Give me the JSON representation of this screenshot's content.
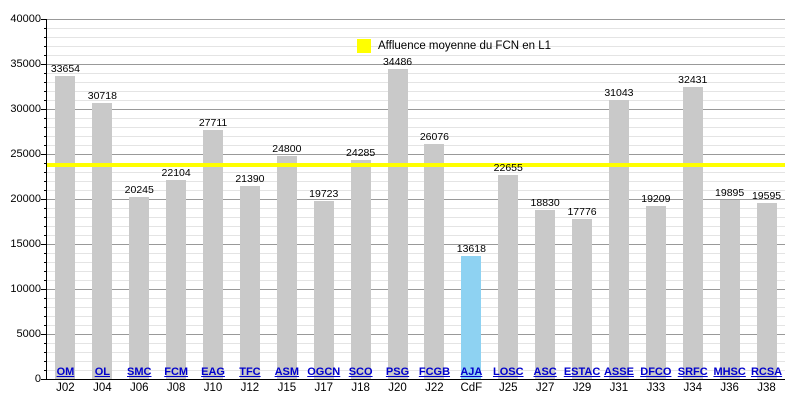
{
  "chart_data": {
    "type": "bar",
    "title": "",
    "xlabel": "",
    "ylabel": "",
    "ylim": [
      0,
      40000
    ],
    "ytick_major_step": 5000,
    "ytick_minor_step": 1000,
    "grid": true,
    "legend_position": "top-center",
    "bars": [
      {
        "team": "OM",
        "matchday": "J02",
        "value": 33654,
        "highlight": false
      },
      {
        "team": "OL",
        "matchday": "J04",
        "value": 30718,
        "highlight": false
      },
      {
        "team": "SMC",
        "matchday": "J06",
        "value": 20245,
        "highlight": false
      },
      {
        "team": "FCM",
        "matchday": "J08",
        "value": 22104,
        "highlight": false
      },
      {
        "team": "EAG",
        "matchday": "J10",
        "value": 27711,
        "highlight": false
      },
      {
        "team": "TFC",
        "matchday": "J12",
        "value": 21390,
        "highlight": false
      },
      {
        "team": "ASM",
        "matchday": "J15",
        "value": 24800,
        "highlight": false
      },
      {
        "team": "OGCN",
        "matchday": "J17",
        "value": 19723,
        "highlight": false
      },
      {
        "team": "SCO",
        "matchday": "J18",
        "value": 24285,
        "highlight": false
      },
      {
        "team": "PSG",
        "matchday": "J20",
        "value": 34486,
        "highlight": false
      },
      {
        "team": "FCGB",
        "matchday": "J22",
        "value": 26076,
        "highlight": false
      },
      {
        "team": "AJA",
        "matchday": "CdF",
        "value": 13618,
        "highlight": true
      },
      {
        "team": "LOSC",
        "matchday": "J25",
        "value": 22655,
        "highlight": false
      },
      {
        "team": "ASC",
        "matchday": "J27",
        "value": 18830,
        "highlight": false
      },
      {
        "team": "ESTAC",
        "matchday": "J29",
        "value": 17776,
        "highlight": false
      },
      {
        "team": "ASSE",
        "matchday": "J31",
        "value": 31043,
        "highlight": false
      },
      {
        "team": "DFCO",
        "matchday": "J33",
        "value": 19209,
        "highlight": false
      },
      {
        "team": "SRFC",
        "matchday": "J34",
        "value": 32431,
        "highlight": false
      },
      {
        "team": "MHSC",
        "matchday": "J36",
        "value": 19895,
        "highlight": false
      },
      {
        "team": "RCSA",
        "matchday": "J38",
        "value": 19595,
        "highlight": false
      }
    ],
    "average_line": {
      "label": "Affluence moyenne du FCN en L1",
      "value": 23800,
      "color": "#ffff00"
    },
    "colors": {
      "bar": "#c9c9c9",
      "highlight_bar": "#8ed2f2",
      "team_link": "#0000cc",
      "grid_major": "#999999",
      "grid_minor": "#e4e4e4",
      "axis": "#000000",
      "text": "#000000"
    }
  }
}
